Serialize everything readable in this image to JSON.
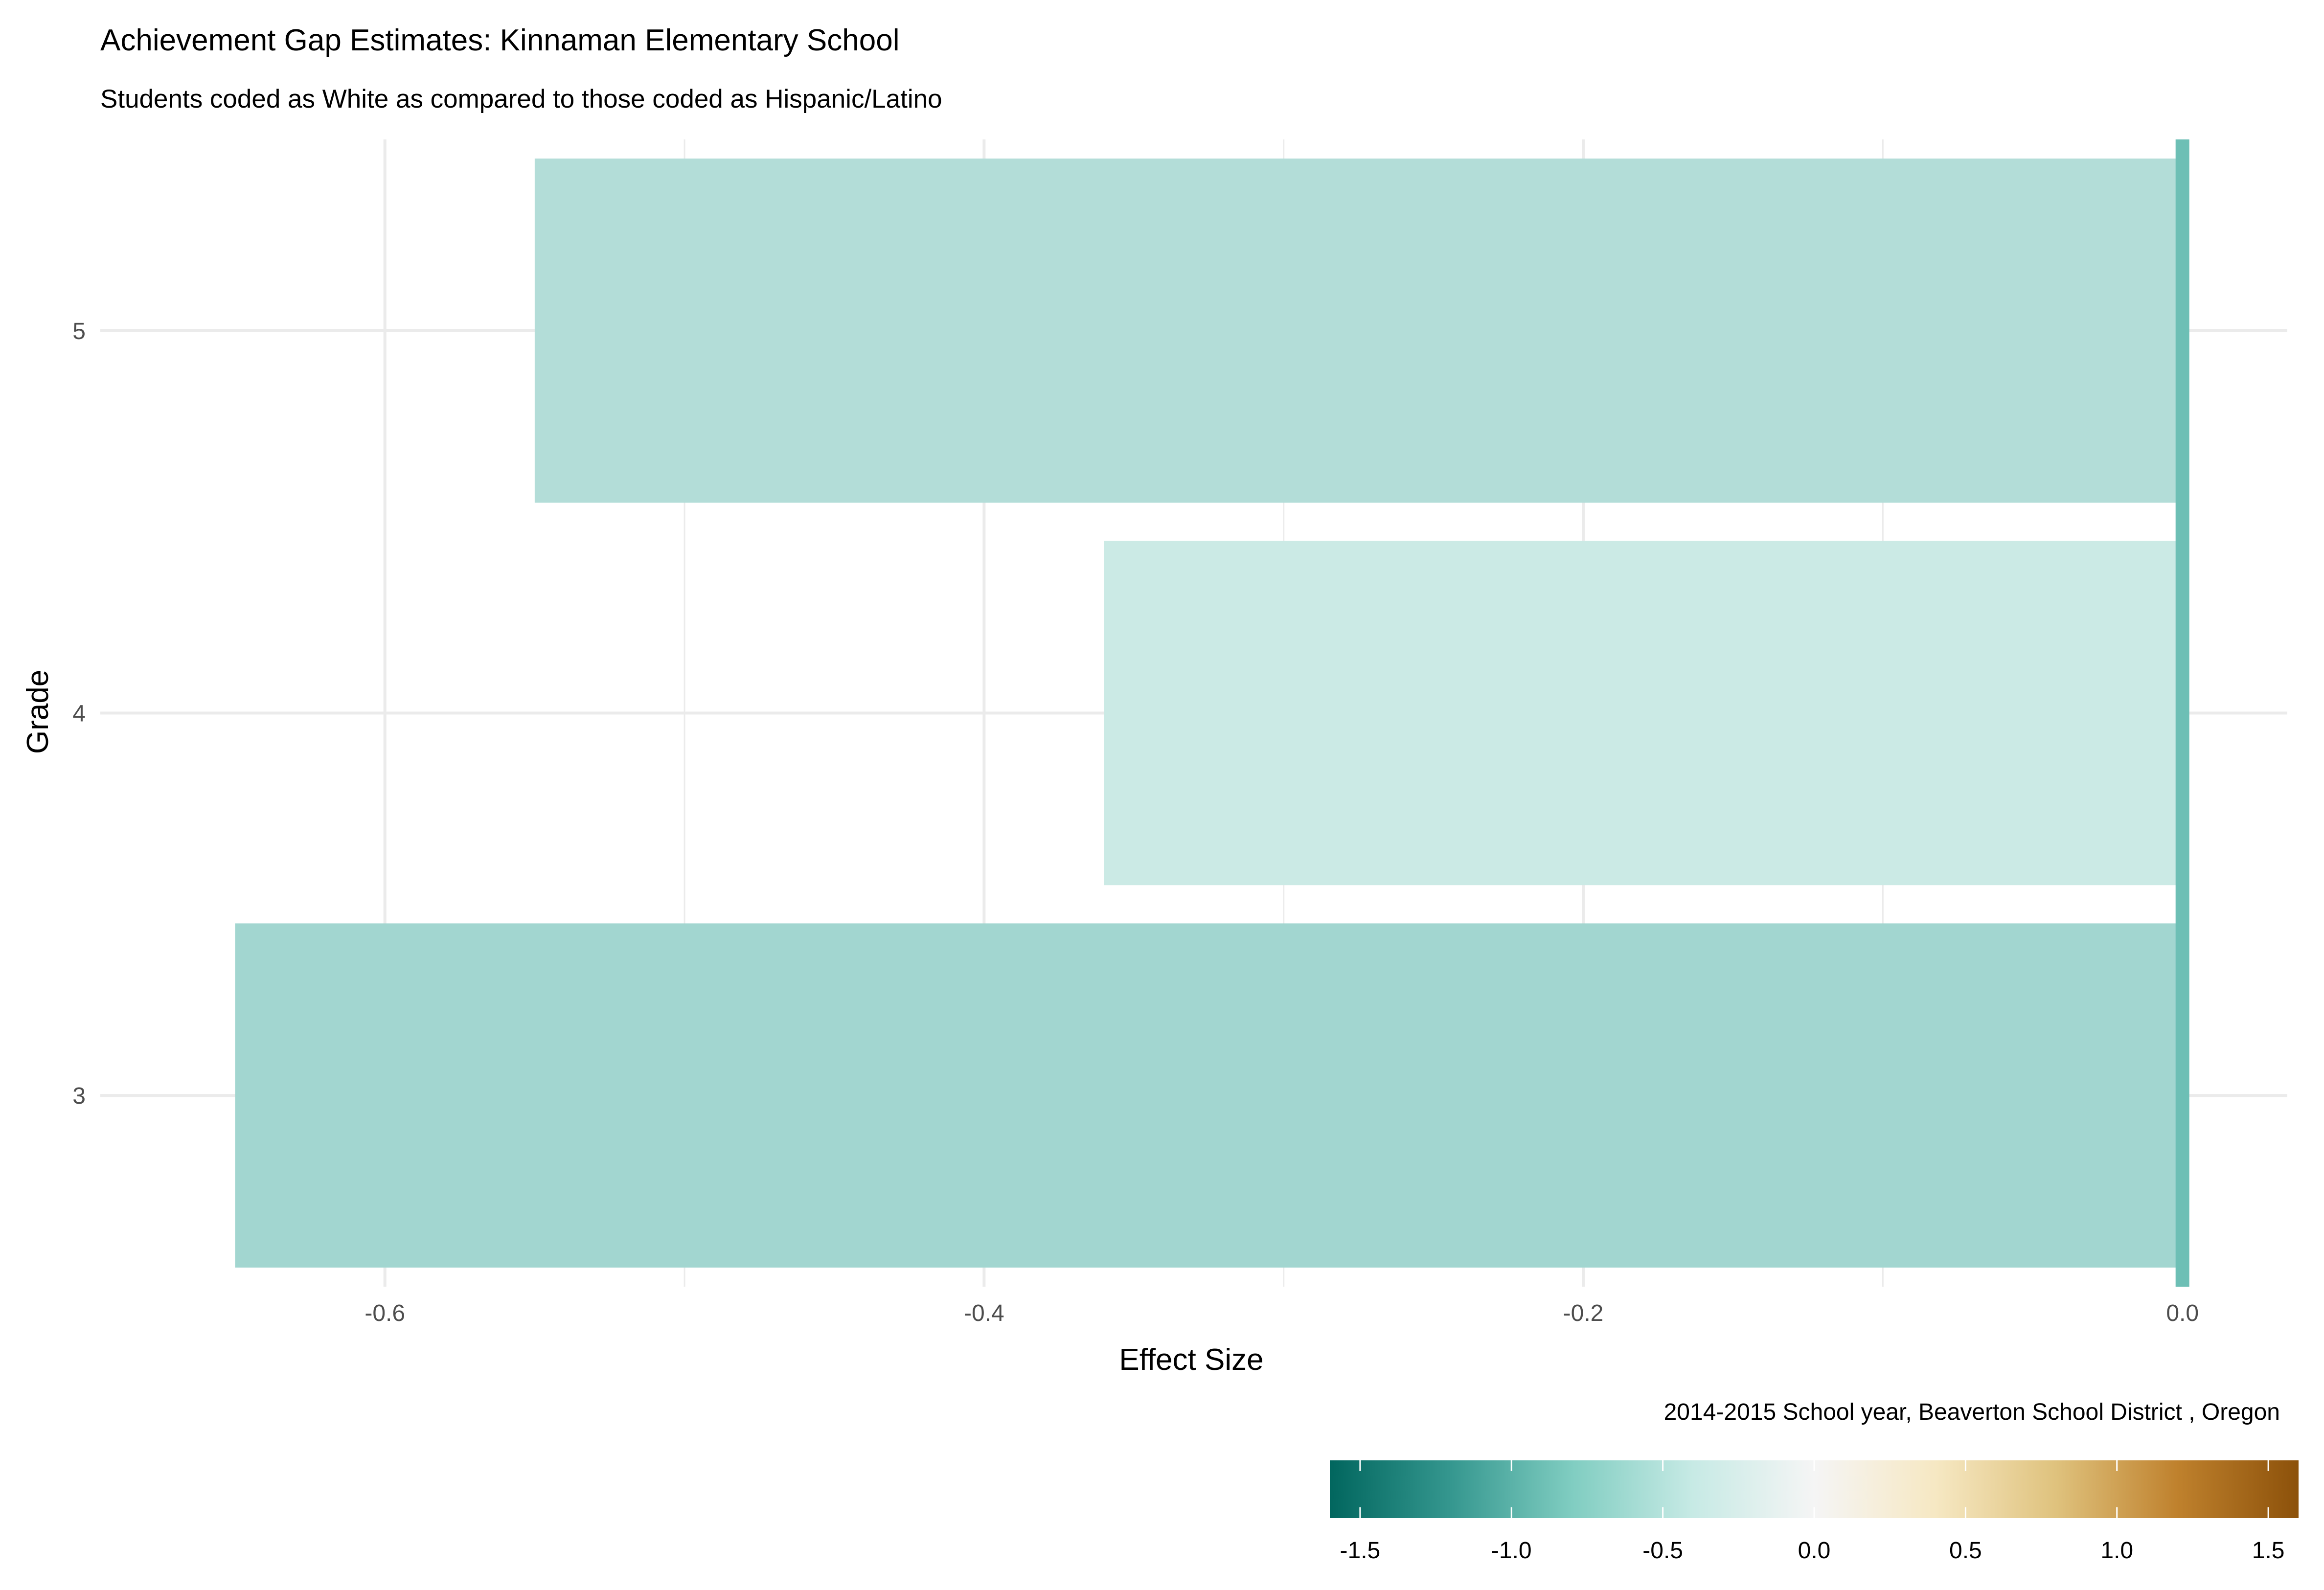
{
  "chart_data": {
    "type": "bar",
    "orientation": "horizontal",
    "title": "Achievement Gap Estimates: Kinnaman Elementary School",
    "subtitle": "Students coded as White as compared to those coded as Hispanic/Latino",
    "xlabel": "Effect Size",
    "ylabel": "Grade",
    "caption": "2014-2015 School year,  Beaverton School District , Oregon",
    "categories": [
      "3",
      "4",
      "5"
    ],
    "values": [
      -0.65,
      -0.36,
      -0.55
    ],
    "xlim": [
      -0.695,
      0.035
    ],
    "x_ticks": [
      -0.6,
      -0.4,
      -0.2,
      0.0
    ],
    "x_tick_labels": [
      "-0.6",
      "-0.4",
      "-0.2",
      "0.0"
    ],
    "reference_line": 0.0,
    "grid": true,
    "colors": {
      "bars": [
        "#a2d6d0",
        "#cbeae5",
        "#b3ddd8"
      ],
      "reference_line": "#6dbfb5",
      "grid": "#ebebeb"
    },
    "legend": {
      "type": "colorbar",
      "position": "bottom-right",
      "range": [
        -1.6,
        1.6
      ],
      "ticks": [
        -1.5,
        -1.0,
        -0.5,
        0.0,
        0.5,
        1.0,
        1.5
      ],
      "tick_labels": [
        "-1.5",
        "-1.0",
        "-0.5",
        "0.0",
        "0.5",
        "1.0",
        "1.5"
      ],
      "palette": [
        "#01665e",
        "#35978f",
        "#80cdc1",
        "#c7eae5",
        "#f5f5f5",
        "#f6e8c3",
        "#dfc27d",
        "#bf812d",
        "#8c510a"
      ]
    }
  }
}
